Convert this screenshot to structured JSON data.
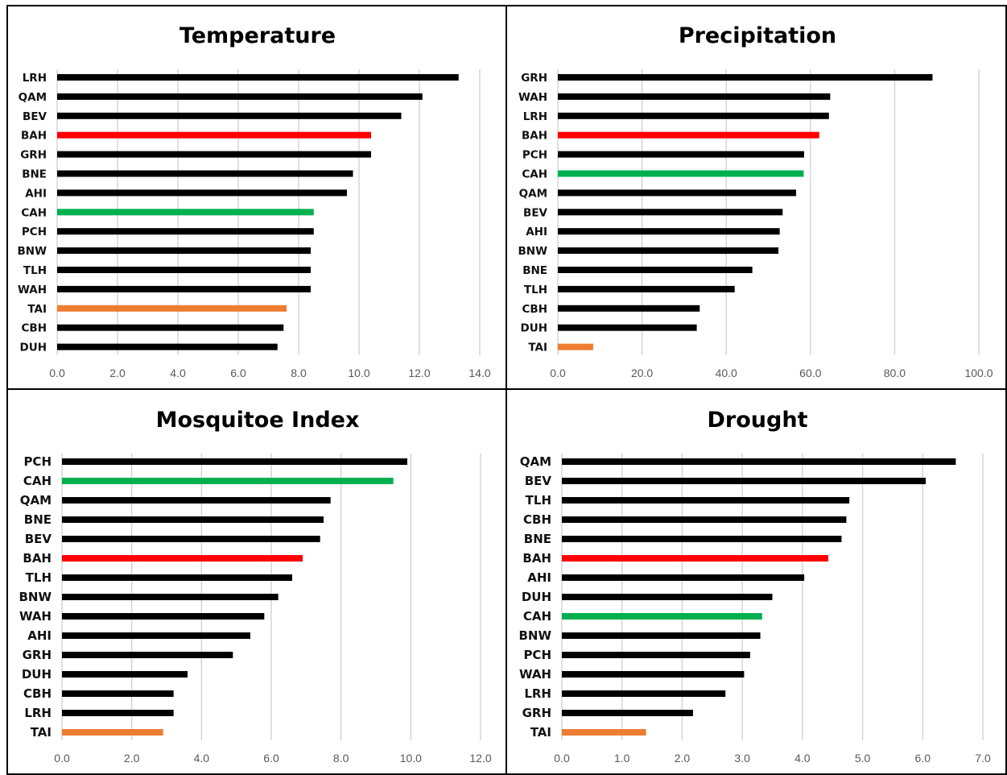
{
  "chart_data": [
    {
      "type": "bar",
      "title": "Temperature",
      "categories": [
        "LRH",
        "QAM",
        "BEV",
        "BAH",
        "GRH",
        "BNE",
        "AHI",
        "CAH",
        "PCH",
        "BNW",
        "TLH",
        "WAH",
        "TAI",
        "CBH",
        "DUH"
      ],
      "values": [
        13.3,
        12.1,
        11.4,
        10.4,
        10.4,
        9.8,
        9.6,
        8.5,
        8.5,
        8.4,
        8.4,
        8.4,
        7.6,
        7.5,
        7.3
      ],
      "colors": [
        "#000000",
        "#000000",
        "#000000",
        "#ff0000",
        "#000000",
        "#000000",
        "#000000",
        "#00b050",
        "#000000",
        "#000000",
        "#000000",
        "#000000",
        "#ed7d31",
        "#000000",
        "#000000"
      ],
      "xticks": [
        "0.0",
        "2.0",
        "4.0",
        "6.0",
        "8.0",
        "10.0",
        "12.0",
        "14.0"
      ],
      "xlim": [
        0,
        14
      ],
      "grid": true
    },
    {
      "type": "bar",
      "title": "Precipitation",
      "categories": [
        "GRH",
        "WAH",
        "LRH",
        "BAH",
        "PCH",
        "CAH",
        "QAM",
        "BEV",
        "AHI",
        "BNW",
        "BNE",
        "TLH",
        "CBH",
        "DUH",
        "TAI"
      ],
      "values": [
        89.0,
        64.7,
        64.4,
        62.1,
        58.5,
        58.4,
        56.6,
        53.4,
        52.7,
        52.4,
        46.2,
        42.0,
        33.7,
        33.0,
        8.4
      ],
      "colors": [
        "#000000",
        "#000000",
        "#000000",
        "#ff0000",
        "#000000",
        "#00b050",
        "#000000",
        "#000000",
        "#000000",
        "#000000",
        "#000000",
        "#000000",
        "#000000",
        "#000000",
        "#ed7d31"
      ],
      "xticks": [
        "0.0",
        "20.0",
        "40.0",
        "60.0",
        "80.0",
        "100.0"
      ],
      "xlim": [
        0,
        100
      ],
      "grid": true
    },
    {
      "type": "bar",
      "title": "Mosquitoe Index",
      "categories": [
        "PCH",
        "CAH",
        "QAM",
        "BNE",
        "BEV",
        "BAH",
        "TLH",
        "BNW",
        "WAH",
        "AHI",
        "GRH",
        "DUH",
        "CBH",
        "LRH",
        "TAI"
      ],
      "values": [
        9.9,
        9.5,
        7.7,
        7.5,
        7.4,
        6.9,
        6.6,
        6.2,
        5.8,
        5.4,
        4.9,
        3.6,
        3.2,
        3.2,
        2.9
      ],
      "colors": [
        "#000000",
        "#00b050",
        "#000000",
        "#000000",
        "#000000",
        "#ff0000",
        "#000000",
        "#000000",
        "#000000",
        "#000000",
        "#000000",
        "#000000",
        "#000000",
        "#000000",
        "#ed7d31"
      ],
      "xticks": [
        "0.0",
        "2.0",
        "4.0",
        "6.0",
        "8.0",
        "10.0",
        "12.0"
      ],
      "xlim": [
        0,
        12
      ],
      "grid": true
    },
    {
      "type": "bar",
      "title": "Drought",
      "categories": [
        "QAM",
        "BEV",
        "TLH",
        "CBH",
        "BNE",
        "BAH",
        "AHI",
        "DUH",
        "CAH",
        "BNW",
        "PCH",
        "WAH",
        "LRH",
        "GRH",
        "TAI"
      ],
      "values": [
        6.55,
        6.05,
        4.78,
        4.73,
        4.65,
        4.43,
        4.03,
        3.5,
        3.33,
        3.3,
        3.13,
        3.03,
        2.72,
        2.18,
        1.4
      ],
      "colors": [
        "#000000",
        "#000000",
        "#000000",
        "#000000",
        "#000000",
        "#ff0000",
        "#000000",
        "#000000",
        "#00b050",
        "#000000",
        "#000000",
        "#000000",
        "#000000",
        "#000000",
        "#ed7d31"
      ],
      "xticks": [
        "0.0",
        "1.0",
        "2.0",
        "3.0",
        "4.0",
        "5.0",
        "6.0",
        "7.0"
      ],
      "xlim": [
        0,
        7
      ],
      "grid": true
    }
  ]
}
